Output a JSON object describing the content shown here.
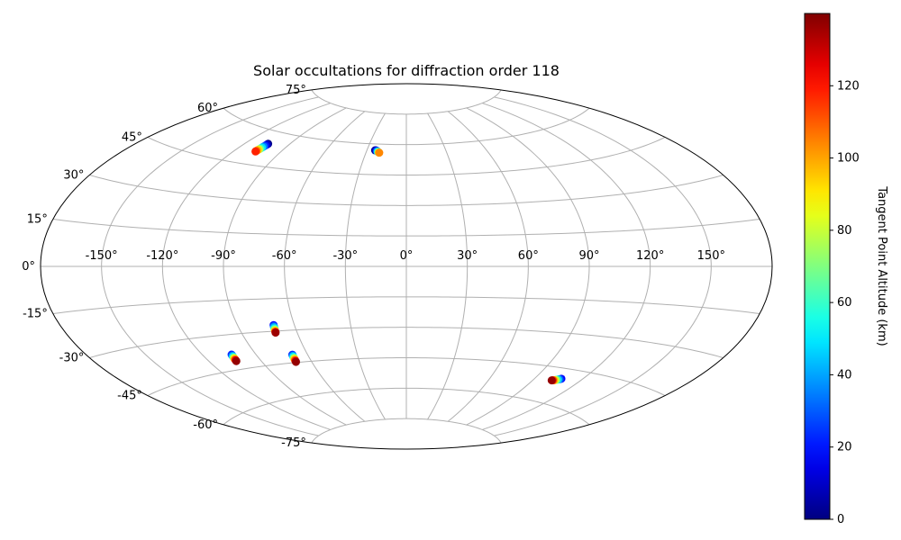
{
  "chart_data": {
    "type": "scatter",
    "projection": "aitoff",
    "title": "Solar occultations for diffraction order 118",
    "grid": true,
    "x_ticks": [
      -150,
      -120,
      -90,
      -60,
      -30,
      0,
      30,
      60,
      90,
      120,
      150
    ],
    "x_tick_labels": [
      "-150°",
      "-120°",
      "-90°",
      "-60°",
      "-30°",
      "0°",
      "30°",
      "60°",
      "90°",
      "120°",
      "150°"
    ],
    "y_ticks": [
      75,
      60,
      45,
      30,
      15,
      0,
      -15,
      -30,
      -45,
      -60,
      -75
    ],
    "y_tick_labels": [
      "75°",
      "60°",
      "45°",
      "30°",
      "15°",
      "0°",
      "-15°",
      "-30°",
      "-45°",
      "-60°",
      "-75°"
    ],
    "xlim": [
      -180,
      180
    ],
    "ylim": [
      -90,
      90
    ],
    "colorbar": {
      "label": "Tangent Point Altitude (km)",
      "colormap": "jet",
      "range": [
        0,
        140
      ],
      "ticks": [
        0,
        20,
        40,
        60,
        80,
        100,
        120
      ],
      "tick_labels": [
        "0",
        "20",
        "40",
        "60",
        "80",
        "100",
        "120"
      ]
    },
    "points": [
      {
        "lon": -104.8,
        "lat": 54.6,
        "alt": 1
      },
      {
        "lon": -104.9,
        "lat": 54.2,
        "alt": 10
      },
      {
        "lon": -105.1,
        "lat": 53.7,
        "alt": 22
      },
      {
        "lon": -105.3,
        "lat": 53.2,
        "alt": 35
      },
      {
        "lon": -105.5,
        "lat": 52.7,
        "alt": 48
      },
      {
        "lon": -105.7,
        "lat": 52.2,
        "alt": 62
      },
      {
        "lon": -105.9,
        "lat": 51.8,
        "alt": 80
      },
      {
        "lon": -106.1,
        "lat": 51.4,
        "alt": 95
      },
      {
        "lon": -106.3,
        "lat": 51.0,
        "alt": 108
      },
      {
        "lon": -106.4,
        "lat": 50.7,
        "alt": 118
      },
      {
        "lon": -23.8,
        "lat": 56.9,
        "alt": 1
      },
      {
        "lon": -23.3,
        "lat": 56.9,
        "alt": 5
      },
      {
        "lon": -22.8,
        "lat": 56.8,
        "alt": 12
      },
      {
        "lon": -22.3,
        "lat": 56.6,
        "alt": 25
      },
      {
        "lon": -21.8,
        "lat": 56.4,
        "alt": 40
      },
      {
        "lon": -21.3,
        "lat": 56.2,
        "alt": 55
      },
      {
        "lon": -20.8,
        "lat": 56.0,
        "alt": 72
      },
      {
        "lon": -20.5,
        "lat": 55.9,
        "alt": 90
      },
      {
        "lon": -20.2,
        "lat": 55.8,
        "alt": 104
      },
      {
        "lon": -71.0,
        "lat": -27.2,
        "alt": 18
      },
      {
        "lon": -71.1,
        "lat": -27.7,
        "alt": 30
      },
      {
        "lon": -71.2,
        "lat": -28.2,
        "alt": 42
      },
      {
        "lon": -71.3,
        "lat": -28.8,
        "alt": 58
      },
      {
        "lon": -71.4,
        "lat": -29.3,
        "alt": 75
      },
      {
        "lon": -71.5,
        "lat": -29.8,
        "alt": 92
      },
      {
        "lon": -71.6,
        "lat": -30.3,
        "alt": 118
      },
      {
        "lon": -71.7,
        "lat": -30.7,
        "alt": 136
      },
      {
        "lon": -103.8,
        "lat": -38.5,
        "alt": 22
      },
      {
        "lon": -103.9,
        "lat": -39.0,
        "alt": 35
      },
      {
        "lon": -104.0,
        "lat": -39.4,
        "alt": 50
      },
      {
        "lon": -104.1,
        "lat": -39.8,
        "alt": 68
      },
      {
        "lon": -104.2,
        "lat": -40.2,
        "alt": 88
      },
      {
        "lon": -104.3,
        "lat": -40.6,
        "alt": 106
      },
      {
        "lon": -104.4,
        "lat": -41.0,
        "alt": 125
      },
      {
        "lon": -104.5,
        "lat": -41.4,
        "alt": 137
      },
      {
        "lon": -69.0,
        "lat": -41.3,
        "alt": 22
      },
      {
        "lon": -69.1,
        "lat": -41.8,
        "alt": 38
      },
      {
        "lon": -69.2,
        "lat": -42.3,
        "alt": 52
      },
      {
        "lon": -69.3,
        "lat": -42.8,
        "alt": 70
      },
      {
        "lon": -69.4,
        "lat": -43.3,
        "alt": 90
      },
      {
        "lon": -69.5,
        "lat": -43.8,
        "alt": 108
      },
      {
        "lon": -69.6,
        "lat": -44.3,
        "alt": 126
      },
      {
        "lon": -69.7,
        "lat": -44.7,
        "alt": 137
      },
      {
        "lon": 107.0,
        "lat": -49.4,
        "alt": 18
      },
      {
        "lon": 106.3,
        "lat": -49.7,
        "alt": 30
      },
      {
        "lon": 105.6,
        "lat": -49.9,
        "alt": 45
      },
      {
        "lon": 104.9,
        "lat": -50.1,
        "alt": 62
      },
      {
        "lon": 104.2,
        "lat": -50.3,
        "alt": 82
      },
      {
        "lon": 103.5,
        "lat": -50.5,
        "alt": 100
      },
      {
        "lon": 102.8,
        "lat": -50.6,
        "alt": 118
      },
      {
        "lon": 102.2,
        "lat": -50.7,
        "alt": 137
      }
    ]
  }
}
